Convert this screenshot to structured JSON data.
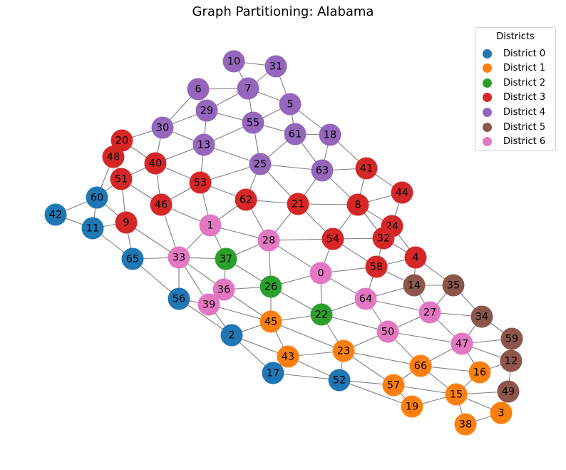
{
  "title": "Graph Partitioning: Alabama",
  "legend": {
    "title": "Districts",
    "entries": [
      {
        "district": 0,
        "label": "District 0",
        "color": "#1f77b4"
      },
      {
        "district": 1,
        "label": "District 1",
        "color": "#ff7f0e"
      },
      {
        "district": 2,
        "label": "District 2",
        "color": "#2ca02c"
      },
      {
        "district": 3,
        "label": "District 3",
        "color": "#d62728"
      },
      {
        "district": 4,
        "label": "District 4",
        "color": "#9467bd"
      },
      {
        "district": 5,
        "label": "District 5",
        "color": "#8c564b"
      },
      {
        "district": 6,
        "label": "District 6",
        "color": "#e377c2"
      }
    ]
  },
  "chart_data": {
    "type": "network",
    "nodes": [
      {
        "id": 0,
        "district": 6
      },
      {
        "id": 1,
        "district": 6
      },
      {
        "id": 2,
        "district": 0
      },
      {
        "id": 3,
        "district": 1
      },
      {
        "id": 4,
        "district": 3
      },
      {
        "id": 5,
        "district": 4
      },
      {
        "id": 6,
        "district": 4
      },
      {
        "id": 7,
        "district": 4
      },
      {
        "id": 8,
        "district": 3
      },
      {
        "id": 9,
        "district": 3
      },
      {
        "id": 10,
        "district": 4
      },
      {
        "id": 11,
        "district": 0
      },
      {
        "id": 12,
        "district": 5
      },
      {
        "id": 13,
        "district": 4
      },
      {
        "id": 14,
        "district": 5
      },
      {
        "id": 15,
        "district": 1
      },
      {
        "id": 16,
        "district": 1
      },
      {
        "id": 17,
        "district": 0
      },
      {
        "id": 18,
        "district": 4
      },
      {
        "id": 19,
        "district": 1
      },
      {
        "id": 20,
        "district": 3
      },
      {
        "id": 21,
        "district": 3
      },
      {
        "id": 22,
        "district": 2
      },
      {
        "id": 23,
        "district": 1
      },
      {
        "id": 24,
        "district": 3
      },
      {
        "id": 25,
        "district": 4
      },
      {
        "id": 26,
        "district": 2
      },
      {
        "id": 27,
        "district": 6
      },
      {
        "id": 28,
        "district": 6
      },
      {
        "id": 29,
        "district": 4
      },
      {
        "id": 30,
        "district": 4
      },
      {
        "id": 31,
        "district": 4
      },
      {
        "id": 32,
        "district": 3
      },
      {
        "id": 33,
        "district": 6
      },
      {
        "id": 34,
        "district": 5
      },
      {
        "id": 35,
        "district": 5
      },
      {
        "id": 36,
        "district": 6
      },
      {
        "id": 37,
        "district": 2
      },
      {
        "id": 38,
        "district": 1
      },
      {
        "id": 39,
        "district": 6
      },
      {
        "id": 40,
        "district": 3
      },
      {
        "id": 41,
        "district": 3
      },
      {
        "id": 42,
        "district": 0
      },
      {
        "id": 43,
        "district": 1
      },
      {
        "id": 44,
        "district": 3
      },
      {
        "id": 45,
        "district": 1
      },
      {
        "id": 46,
        "district": 3
      },
      {
        "id": 47,
        "district": 6
      },
      {
        "id": 48,
        "district": 3
      },
      {
        "id": 49,
        "district": 5
      },
      {
        "id": 50,
        "district": 6
      },
      {
        "id": 51,
        "district": 3
      },
      {
        "id": 52,
        "district": 0
      },
      {
        "id": 53,
        "district": 3
      },
      {
        "id": 54,
        "district": 3
      },
      {
        "id": 55,
        "district": 4
      },
      {
        "id": 56,
        "district": 0
      },
      {
        "id": 57,
        "district": 1
      },
      {
        "id": 58,
        "district": 3
      },
      {
        "id": 59,
        "district": 5
      },
      {
        "id": 60,
        "district": 0
      },
      {
        "id": 61,
        "district": 4
      },
      {
        "id": 62,
        "district": 3
      },
      {
        "id": 63,
        "district": 4
      },
      {
        "id": 64,
        "district": 6
      },
      {
        "id": 65,
        "district": 0
      },
      {
        "id": 66,
        "district": 1
      }
    ],
    "edges": [
      [
        10,
        31
      ],
      [
        10,
        7
      ],
      [
        31,
        7
      ],
      [
        31,
        5
      ],
      [
        6,
        7
      ],
      [
        6,
        29
      ],
      [
        6,
        30
      ],
      [
        7,
        29
      ],
      [
        7,
        55
      ],
      [
        7,
        5
      ],
      [
        29,
        55
      ],
      [
        29,
        30
      ],
      [
        29,
        13
      ],
      [
        5,
        55
      ],
      [
        5,
        61
      ],
      [
        5,
        18
      ],
      [
        55,
        61
      ],
      [
        55,
        13
      ],
      [
        55,
        25
      ],
      [
        61,
        25
      ],
      [
        61,
        63
      ],
      [
        61,
        18
      ],
      [
        18,
        63
      ],
      [
        18,
        41
      ],
      [
        30,
        20
      ],
      [
        30,
        40
      ],
      [
        30,
        13
      ],
      [
        13,
        40
      ],
      [
        13,
        53
      ],
      [
        13,
        25
      ],
      [
        20,
        48
      ],
      [
        20,
        40
      ],
      [
        48,
        51
      ],
      [
        48,
        60
      ],
      [
        40,
        51
      ],
      [
        40,
        53
      ],
      [
        40,
        46
      ],
      [
        25,
        63
      ],
      [
        25,
        53
      ],
      [
        25,
        62
      ],
      [
        25,
        21
      ],
      [
        63,
        21
      ],
      [
        63,
        41
      ],
      [
        63,
        8
      ],
      [
        41,
        8
      ],
      [
        41,
        44
      ],
      [
        51,
        60
      ],
      [
        51,
        9
      ],
      [
        51,
        46
      ],
      [
        53,
        62
      ],
      [
        53,
        46
      ],
      [
        53,
        1
      ],
      [
        62,
        21
      ],
      [
        62,
        1
      ],
      [
        62,
        28
      ],
      [
        21,
        8
      ],
      [
        21,
        28
      ],
      [
        21,
        54
      ],
      [
        8,
        44
      ],
      [
        8,
        24
      ],
      [
        8,
        54
      ],
      [
        8,
        32
      ],
      [
        44,
        24
      ],
      [
        60,
        42
      ],
      [
        60,
        11
      ],
      [
        60,
        9
      ],
      [
        42,
        11
      ],
      [
        11,
        9
      ],
      [
        11,
        65
      ],
      [
        9,
        65
      ],
      [
        9,
        33
      ],
      [
        46,
        1
      ],
      [
        46,
        33
      ],
      [
        24,
        32
      ],
      [
        24,
        4
      ],
      [
        1,
        28
      ],
      [
        1,
        33
      ],
      [
        1,
        37
      ],
      [
        28,
        54
      ],
      [
        28,
        37
      ],
      [
        28,
        26
      ],
      [
        28,
        0
      ],
      [
        54,
        32
      ],
      [
        54,
        0
      ],
      [
        54,
        58
      ],
      [
        32,
        58
      ],
      [
        32,
        4
      ],
      [
        65,
        33
      ],
      [
        65,
        56
      ],
      [
        33,
        37
      ],
      [
        33,
        36
      ],
      [
        33,
        39
      ],
      [
        33,
        56
      ],
      [
        37,
        36
      ],
      [
        37,
        26
      ],
      [
        0,
        58
      ],
      [
        0,
        64
      ],
      [
        0,
        22
      ],
      [
        0,
        26
      ],
      [
        58,
        4
      ],
      [
        58,
        64
      ],
      [
        58,
        14
      ],
      [
        4,
        14
      ],
      [
        4,
        35
      ],
      [
        14,
        64
      ],
      [
        14,
        35
      ],
      [
        14,
        27
      ],
      [
        35,
        27
      ],
      [
        35,
        34
      ],
      [
        56,
        39
      ],
      [
        56,
        2
      ],
      [
        36,
        39
      ],
      [
        36,
        26
      ],
      [
        36,
        45
      ],
      [
        26,
        45
      ],
      [
        26,
        22
      ],
      [
        64,
        22
      ],
      [
        64,
        27
      ],
      [
        64,
        50
      ],
      [
        39,
        45
      ],
      [
        39,
        2
      ],
      [
        22,
        45
      ],
      [
        22,
        23
      ],
      [
        22,
        50
      ],
      [
        27,
        34
      ],
      [
        27,
        50
      ],
      [
        27,
        47
      ],
      [
        34,
        47
      ],
      [
        34,
        59
      ],
      [
        45,
        2
      ],
      [
        45,
        43
      ],
      [
        45,
        23
      ],
      [
        2,
        43
      ],
      [
        2,
        17
      ],
      [
        50,
        23
      ],
      [
        50,
        47
      ],
      [
        50,
        66
      ],
      [
        47,
        59
      ],
      [
        47,
        12
      ],
      [
        47,
        16
      ],
      [
        47,
        66
      ],
      [
        59,
        12
      ],
      [
        43,
        17
      ],
      [
        43,
        23
      ],
      [
        43,
        52
      ],
      [
        23,
        52
      ],
      [
        23,
        57
      ],
      [
        23,
        66
      ],
      [
        17,
        52
      ],
      [
        66,
        57
      ],
      [
        66,
        16
      ],
      [
        66,
        15
      ],
      [
        16,
        12
      ],
      [
        16,
        15
      ],
      [
        12,
        49
      ],
      [
        52,
        57
      ],
      [
        52,
        19
      ],
      [
        57,
        19
      ],
      [
        57,
        15
      ],
      [
        15,
        19
      ],
      [
        15,
        49
      ],
      [
        15,
        38
      ],
      [
        15,
        3
      ],
      [
        49,
        3
      ],
      [
        3,
        38
      ]
    ]
  }
}
